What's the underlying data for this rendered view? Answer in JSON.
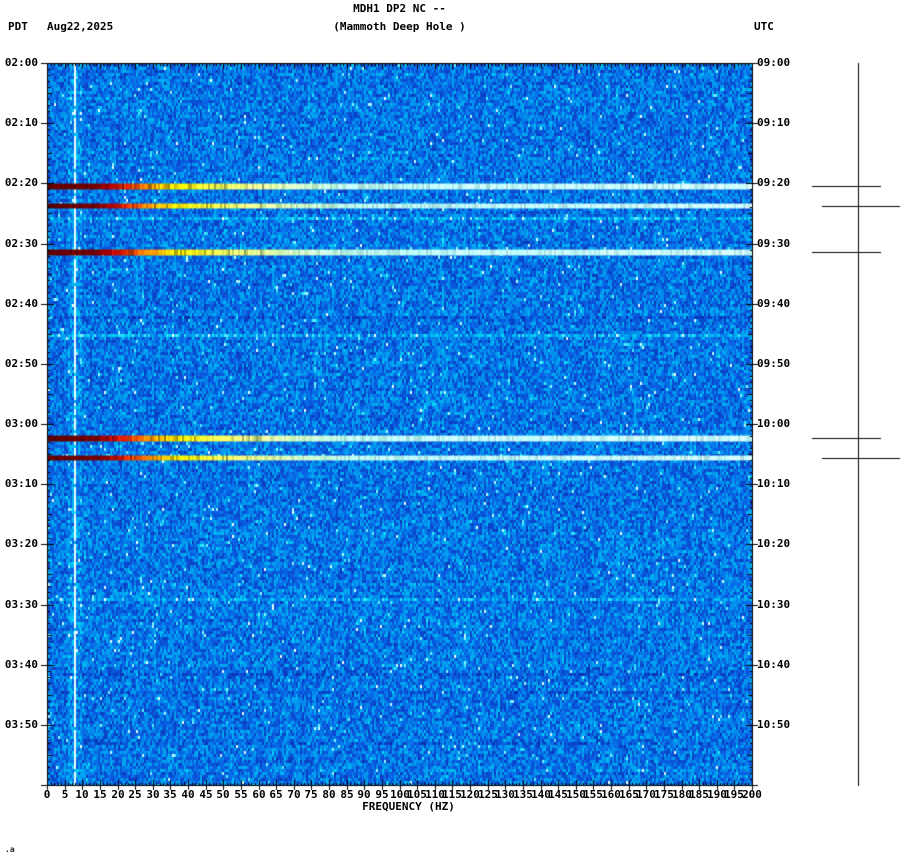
{
  "header": {
    "title": "MDH1 DP2 NC --",
    "subtitle": "(Mammoth Deep Hole )",
    "tz_left": "PDT",
    "date": "Aug22,2025",
    "tz_right": "UTC"
  },
  "footer": {
    "note": ".a"
  },
  "chart_data": {
    "type": "heatmap",
    "subtype": "seismic-spectrogram",
    "title": "MDH1 DP2 NC --",
    "subtitle": "(Mammoth Deep Hole )",
    "station": "MDH1",
    "channel": "DP2",
    "network": "NC",
    "location": "--",
    "station_name": "Mammoth Deep Hole",
    "date": "Aug22,2025",
    "xlabel": "FREQUENCY (HZ)",
    "x_range_hz": [
      0,
      200
    ],
    "x_tick_step_hz": 5,
    "x_tick_labels": [
      "0",
      "5",
      "10",
      "15",
      "20",
      "25",
      "30",
      "35",
      "40",
      "45",
      "50",
      "55",
      "60",
      "65",
      "70",
      "75",
      "80",
      "85",
      "90",
      "95",
      "100",
      "105",
      "110",
      "115",
      "120",
      "125",
      "130",
      "135",
      "140",
      "145",
      "150",
      "155",
      "160",
      "165",
      "170",
      "175",
      "180",
      "185",
      "190",
      "195",
      "200"
    ],
    "time_axis": {
      "start_pdt": "02:00",
      "end_pdt": "04:00",
      "start_utc": "09:00",
      "end_utc": "11:00",
      "duration_minutes": 120,
      "tick_step_minutes": 10,
      "minor_tick_minutes": 1
    },
    "left_axis_times_pdt": [
      "02:00",
      "02:10",
      "02:20",
      "02:30",
      "02:40",
      "02:50",
      "03:00",
      "03:10",
      "03:20",
      "03:30",
      "03:40",
      "03:50"
    ],
    "right_axis_times_utc": [
      "09:00",
      "09:10",
      "09:20",
      "09:30",
      "09:40",
      "09:50",
      "10:00",
      "10:10",
      "10:20",
      "10:30",
      "10:40",
      "10:50"
    ],
    "grid": false,
    "legend": "none",
    "colormap": "jet",
    "tonal_line_hz": 7.6,
    "background_gradient": [
      [
        0.0,
        "#0b24a8"
      ],
      [
        0.3,
        "#0a62e6"
      ],
      [
        0.55,
        "#00a0f0"
      ],
      [
        0.75,
        "#00d8f8"
      ],
      [
        0.9,
        "#7df4ff"
      ],
      [
        1.0,
        "#e8ffff"
      ]
    ],
    "event_gradient_hz": [
      [
        0,
        "#600000"
      ],
      [
        13,
        "#6e0000"
      ],
      [
        17,
        "#9c0000"
      ],
      [
        21,
        "#d81800"
      ],
      [
        25,
        "#ff5400"
      ],
      [
        29,
        "#ff9600"
      ],
      [
        33,
        "#ffcf00"
      ],
      [
        38,
        "#fdf200"
      ],
      [
        47,
        "#f6fc4a"
      ],
      [
        57,
        "#e8fc88"
      ],
      [
        70,
        "#ccfac0"
      ],
      [
        85,
        "#b2f4e4"
      ],
      [
        110,
        "#b6f8fa"
      ],
      [
        200,
        "#c6fdff"
      ]
    ],
    "events": [
      {
        "pdt_time": "02:20",
        "utc_time": "09:20",
        "minutes_after_start": 20.4,
        "intensity": 1.0,
        "marker_length": "short"
      },
      {
        "pdt_time": "02:24",
        "utc_time": "09:24",
        "minutes_after_start": 23.7,
        "intensity": 0.9,
        "marker_length": "long"
      },
      {
        "pdt_time": "02:31",
        "utc_time": "09:31",
        "minutes_after_start": 31.4,
        "intensity": 1.0,
        "marker_length": "short"
      },
      {
        "pdt_time": "03:02",
        "utc_time": "10:02",
        "minutes_after_start": 62.3,
        "intensity": 1.0,
        "marker_length": "short"
      },
      {
        "pdt_time": "03:06",
        "utc_time": "10:06",
        "minutes_after_start": 65.6,
        "intensity": 0.9,
        "marker_length": "long"
      }
    ],
    "axis_color": "#000000",
    "background_color": "#ffffff"
  }
}
